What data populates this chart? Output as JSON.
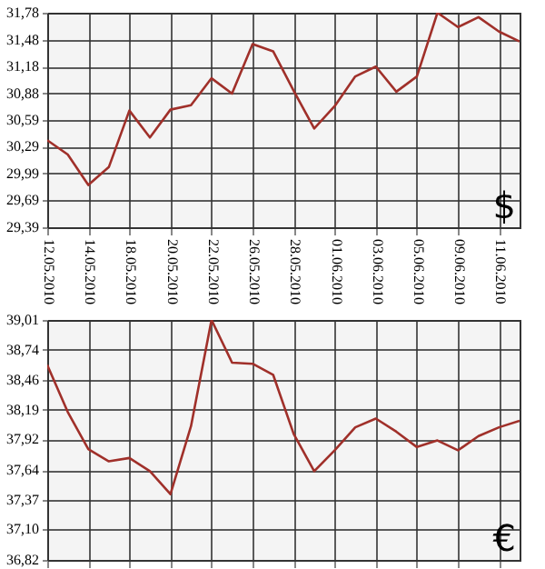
{
  "chart_data": [
    {
      "type": "line",
      "categories": [
        "12.05.2010",
        null,
        "14.05.2010",
        null,
        "18.05.2010",
        null,
        "20.05.2010",
        null,
        "22.05.2010",
        null,
        "26.05.2010",
        null,
        "28.05.2010",
        null,
        "01.06.2010",
        null,
        "03.06.2010",
        null,
        "05.06.2010",
        null,
        "09.06.2010",
        null,
        "11.06.2010",
        null
      ],
      "values": [
        30.36,
        30.2,
        29.86,
        30.06,
        30.69,
        30.39,
        30.7,
        30.75,
        31.05,
        30.88,
        31.43,
        31.35,
        30.91,
        30.49,
        30.74,
        31.07,
        31.18,
        30.9,
        31.07,
        31.78,
        31.62,
        31.73,
        31.57,
        31.46
      ],
      "color": "#a0302a",
      "ylim": [
        29.39,
        31.78
      ],
      "yticks": [
        {
          "value": 29.39,
          "label": "29,39"
        },
        {
          "value": 29.69,
          "label": "29,69"
        },
        {
          "value": 29.99,
          "label": "29,99"
        },
        {
          "value": 30.29,
          "label": "30,29"
        },
        {
          "value": 30.59,
          "label": "30,59"
        },
        {
          "value": 30.88,
          "label": "30,88"
        },
        {
          "value": 31.18,
          "label": "31,18"
        },
        {
          "value": 31.48,
          "label": "31,48"
        },
        {
          "value": 31.78,
          "label": "31,78"
        }
      ],
      "grid": true,
      "annotations": [
        "$"
      ]
    },
    {
      "type": "line",
      "categories": [
        "12.05.2010",
        null,
        "14.05.2010",
        null,
        "18.05.2010",
        null,
        "20.05.2010",
        null,
        "22.05.2010",
        null,
        "26.05.2010",
        null,
        "28.05.2010",
        null,
        "01.06.2010",
        null,
        "03.06.2010",
        null,
        "05.06.2010",
        null,
        "09.06.2010",
        null,
        "11.06.2010",
        null
      ],
      "values": [
        38.6,
        38.17,
        37.83,
        37.72,
        37.75,
        37.63,
        37.42,
        38.04,
        39.01,
        38.62,
        38.61,
        38.51,
        37.97,
        37.63,
        37.82,
        38.03,
        38.11,
        37.99,
        37.85,
        37.91,
        37.82,
        37.95,
        38.03,
        38.09
      ],
      "color": "#a0302a",
      "ylim": [
        36.82,
        39.01
      ],
      "yticks": [
        {
          "value": 36.82,
          "label": "36,82"
        },
        {
          "value": 37.1,
          "label": "37,10"
        },
        {
          "value": 37.37,
          "label": "37,37"
        },
        {
          "value": 37.64,
          "label": "37,64"
        },
        {
          "value": 37.92,
          "label": "37,92"
        },
        {
          "value": 38.19,
          "label": "38,19"
        },
        {
          "value": 38.46,
          "label": "38,46"
        },
        {
          "value": 38.74,
          "label": "38,74"
        },
        {
          "value": 39.01,
          "label": "39,01"
        }
      ],
      "grid": true,
      "tick_labels": "y",
      "annotations": [
        "€"
      ]
    }
  ]
}
